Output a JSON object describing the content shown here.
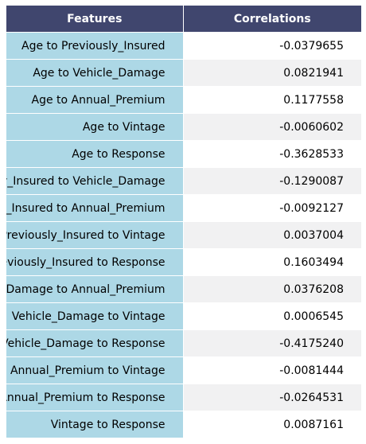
{
  "chart_data": {
    "type": "table",
    "columns": [
      "Features",
      "Correlations"
    ],
    "rows": [
      {
        "feature": "Age to Previously_Insured",
        "value": "-0.0379655"
      },
      {
        "feature": "Age to Vehicle_Damage",
        "value": "0.0821941"
      },
      {
        "feature": "Age to Annual_Premium",
        "value": "0.1177558"
      },
      {
        "feature": "Age to Vintage",
        "value": "-0.0060602"
      },
      {
        "feature": "Age to Response",
        "value": "-0.3628533"
      },
      {
        "feature": "Previously_Insured to Vehicle_Damage",
        "value": "-0.1290087"
      },
      {
        "feature": "Previously_Insured to Annual_Premium",
        "value": "-0.0092127"
      },
      {
        "feature": "Previously_Insured to Vintage",
        "value": "0.0037004"
      },
      {
        "feature": "Previously_Insured to Response",
        "value": "0.1603494"
      },
      {
        "feature": "Vehicle_Damage to Annual_Premium",
        "value": "0.0376208"
      },
      {
        "feature": "Vehicle_Damage to Vintage",
        "value": "0.0006545"
      },
      {
        "feature": "Vehicle_Damage to Response",
        "value": "-0.4175240"
      },
      {
        "feature": "Annual_Premium to Vintage",
        "value": "-0.0081444"
      },
      {
        "feature": "Annual_Premium to Response",
        "value": "-0.0264531"
      },
      {
        "feature": "Vintage to Response",
        "value": "0.0087161"
      }
    ],
    "colors": {
      "header_bg": "#40466e",
      "header_text": "#ffffff",
      "feature_bg": "#add8e6",
      "row_alt_bg": "#f1f1f2",
      "row_bg": "#ffffff"
    }
  }
}
